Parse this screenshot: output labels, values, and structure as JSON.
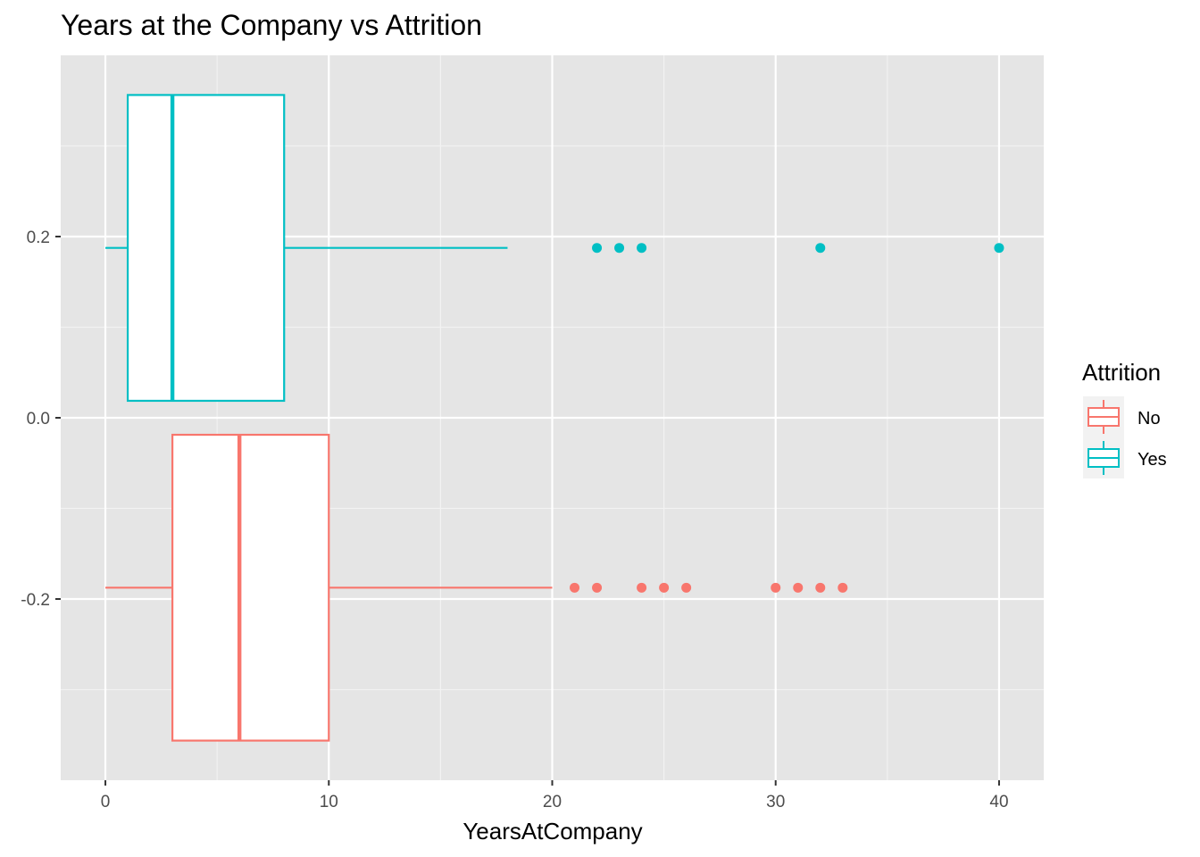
{
  "chart_data": {
    "type": "boxplot",
    "orientation": "horizontal",
    "title": "Years at the Company vs Attrition",
    "xlabel": "YearsAtCompany",
    "ylabel": "",
    "xlim": [
      -2,
      42
    ],
    "ylim": [
      -0.4,
      0.4
    ],
    "x_ticks": [
      0,
      10,
      20,
      30,
      40
    ],
    "x_tick_labels": [
      "0",
      "10",
      "20",
      "30",
      "40"
    ],
    "y_ticks": [
      0.2,
      0.0,
      -0.2
    ],
    "y_tick_labels": [
      "0.2",
      "0.0",
      "-0.2"
    ],
    "grid": true,
    "legend": {
      "title": "Attrition",
      "position": "right",
      "entries": [
        {
          "label": "No",
          "color": "#F8766D"
        },
        {
          "label": "Yes",
          "color": "#00BFC4"
        }
      ]
    },
    "series": [
      {
        "name": "Yes",
        "color": "#00BFC4",
        "y_center": 0.1875,
        "y_low": 0.01875,
        "y_high": 0.35625,
        "whisker_low": 0,
        "q1": 1,
        "median": 3,
        "q3": 8,
        "whisker_high": 18,
        "outliers": [
          22,
          23,
          24,
          32,
          40
        ]
      },
      {
        "name": "No",
        "color": "#F8766D",
        "y_center": -0.1875,
        "y_low": -0.35625,
        "y_high": -0.01875,
        "whisker_low": 0,
        "q1": 3,
        "median": 6,
        "q3": 10,
        "whisker_high": 20,
        "outliers": [
          21,
          22,
          24,
          25,
          26,
          30,
          31,
          32,
          33
        ]
      }
    ]
  }
}
